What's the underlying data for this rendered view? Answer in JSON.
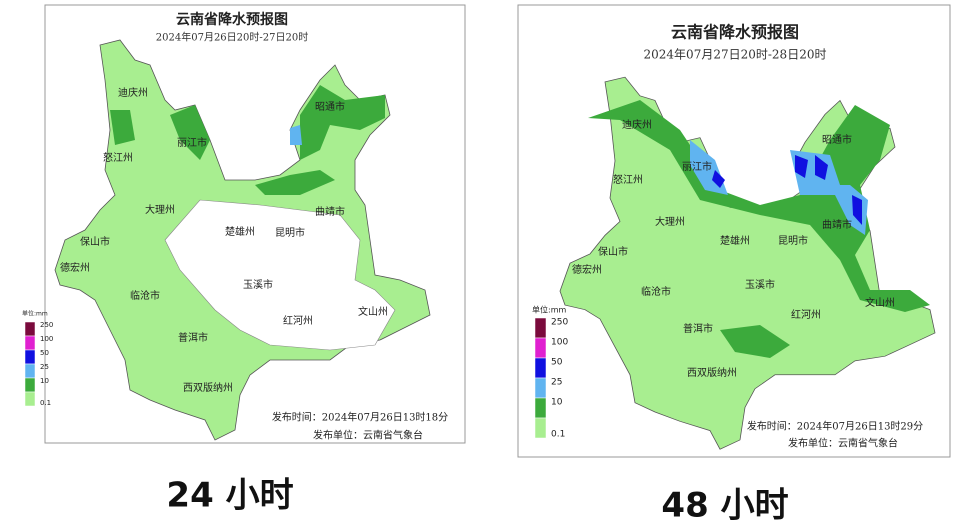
{
  "panels": [
    {
      "title": "云南省降水预报图",
      "subtitle": "2024年07月26日20时-27日20时",
      "legend": {
        "unit": "单位:mm",
        "levels": [
          {
            "label": 250,
            "color": "#7a0a3c"
          },
          {
            "label": 100,
            "color": "#e020d0"
          },
          {
            "label": 50,
            "color": "#1010e0"
          },
          {
            "label": 25,
            "color": "#60b4f0"
          },
          {
            "label": 10,
            "color": "#3caa3c"
          },
          {
            "label": 0.1,
            "color": "#a8ee90"
          }
        ]
      },
      "cities": [
        "迪庆州",
        "丽江市",
        "怒江州",
        "昭通市",
        "大理州",
        "曲靖市",
        "楚雄州",
        "昆明市",
        "保山市",
        "德宏州",
        "玉溪市",
        "临沧市",
        "红河州",
        "文山州",
        "普洱市",
        "西双版纳州"
      ],
      "issue_time": "发布时间：2024年07月26日13时18分",
      "issuer": "发布单位：云南省气象台",
      "caption": "24 小时"
    },
    {
      "title": "云南省降水预报图",
      "subtitle": "2024年07月27日20时-28日20时",
      "legend": {
        "unit": "单位:mm",
        "levels": [
          {
            "label": 250,
            "color": "#7a0a3c"
          },
          {
            "label": 100,
            "color": "#e020d0"
          },
          {
            "label": 50,
            "color": "#1010e0"
          },
          {
            "label": 25,
            "color": "#60b4f0"
          },
          {
            "label": 10,
            "color": "#3caa3c"
          },
          {
            "label": 0.1,
            "color": "#a8ee90"
          }
        ]
      },
      "cities": [
        "迪庆州",
        "丽江市",
        "怒江州",
        "昭通市",
        "大理州",
        "曲靖市",
        "楚雄州",
        "昆明市",
        "保山市",
        "德宏州",
        "玉溪市",
        "临沧市",
        "红河州",
        "文山州",
        "普洱市",
        "西双版纳州"
      ],
      "issue_time": "发布时间：2024年07月26日13时29分",
      "issuer": "发布单位：云南省气象台",
      "caption": "48 小时"
    }
  ]
}
